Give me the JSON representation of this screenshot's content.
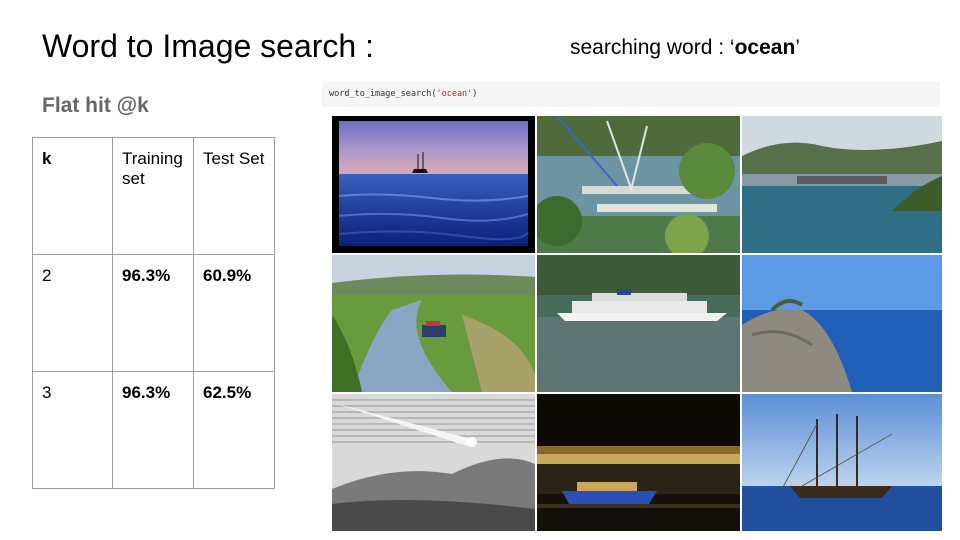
{
  "title": "Word to Image search :",
  "query": {
    "prefix": "searching word : ‘",
    "word": "ocean",
    "suffix": "’"
  },
  "subtitle": "Flat hit @k",
  "table": {
    "headers": [
      "k",
      "Training set",
      "Test Set"
    ],
    "rows": [
      [
        "2",
        "96.3%",
        "60.9%"
      ],
      [
        "3",
        "96.3%",
        "62.5%"
      ]
    ]
  },
  "code": {
    "func": "word_to_image_search(",
    "arg": "'ocean'",
    "close": ")"
  },
  "results": [
    {
      "icon": "sailing-ship-sunset-image"
    },
    {
      "icon": "marina-boats-image"
    },
    {
      "icon": "harbor-hills-image"
    },
    {
      "icon": "canal-boat-image"
    },
    {
      "icon": "cruise-ship-image"
    },
    {
      "icon": "rocky-coast-image"
    },
    {
      "icon": "comet-engraving-image"
    },
    {
      "icon": "night-harbor-image"
    },
    {
      "icon": "tall-ship-image"
    }
  ]
}
